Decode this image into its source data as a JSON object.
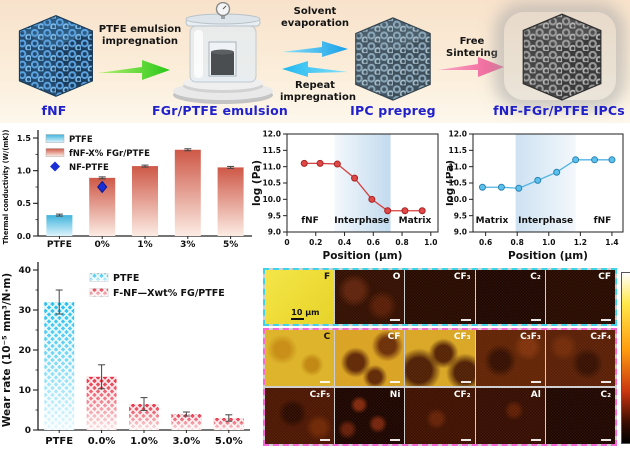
{
  "process": {
    "label_color": "#2121cc",
    "steps": [
      {
        "label": "fNF"
      },
      {
        "label": "FGr/PTFE emulsion"
      },
      {
        "label": "IPC prepreg"
      },
      {
        "label": "fNF-FGr/PTFE IPCs"
      }
    ],
    "arrows": [
      {
        "label": "PTFE emulsion impregnation",
        "color": "#35c419",
        "direction": "right"
      },
      {
        "label": "Solvent evaporation",
        "color": "#22aee8",
        "direction": "right"
      },
      {
        "label": "Repeat impregnation",
        "color": "#22aee8",
        "direction": "left"
      },
      {
        "label": "Free Sintering",
        "color": "#f2649e",
        "direction": "right"
      }
    ]
  },
  "chart_data": [
    {
      "type": "bar",
      "ylabel": "Thermal conductivity (W/(mK))",
      "categories": [
        "PTFE",
        "0%",
        "1%",
        "3%",
        "5%"
      ],
      "values": [
        0.32,
        0.89,
        1.07,
        1.32,
        1.05
      ],
      "errors": [
        0.015,
        0.015,
        0.015,
        0.015,
        0.015
      ],
      "styles": [
        "cyan",
        "red",
        "red",
        "red",
        "red"
      ],
      "ylim": [
        0,
        1.5
      ],
      "yticks": [
        "0.0",
        "0.5",
        "1.0",
        "1.5"
      ],
      "yminor": 0.25,
      "hatch": false,
      "marker": {
        "label": "NF-PTFE",
        "category": "0%",
        "value": 0.75,
        "color": "#1b2fd6"
      },
      "legend": [
        {
          "label": "PTFE",
          "swatch": "cyan"
        },
        {
          "label": "fNF-X% FGr/PTFE",
          "swatch": "red"
        },
        {
          "label": "NF-PTFE",
          "swatch": "diamond"
        }
      ]
    },
    {
      "type": "line",
      "color": "#d64040",
      "marker_fill": "#e04848",
      "marker_stroke": "#a82424",
      "xlabel": "Position (μm)",
      "ylabel": "log (Pa)",
      "x": [
        0.12,
        0.23,
        0.35,
        0.47,
        0.59,
        0.7,
        0.82,
        0.94
      ],
      "y": [
        11.1,
        11.1,
        11.08,
        10.65,
        10.0,
        9.65,
        9.65,
        9.65
      ],
      "xlim": [
        0,
        1.05
      ],
      "ylim": [
        9.0,
        12.0
      ],
      "xticks": [
        "0",
        "0.2",
        "0.4",
        "0.6",
        "0.8",
        "1.0"
      ],
      "yticks": [
        "9.0",
        "9.5",
        "10.0",
        "10.5",
        "11.0",
        "11.5",
        "12.0"
      ],
      "band": [
        0.33,
        0.72
      ],
      "band_alpha": [
        0.12,
        0.62
      ],
      "regions": [
        {
          "label": "fNF",
          "x": 0.16
        },
        {
          "label": "Interphase",
          "x": 0.52
        },
        {
          "label": "Matrix",
          "x": 0.89
        }
      ]
    },
    {
      "type": "line",
      "color": "#52b4e4",
      "marker_fill": "#5cc0ec",
      "marker_stroke": "#2a84b4",
      "xlabel": "Position (μm)",
      "ylabel": "log (Pa)",
      "x": [
        0.58,
        0.7,
        0.81,
        0.93,
        1.05,
        1.17,
        1.29,
        1.4
      ],
      "y": [
        10.37,
        10.37,
        10.34,
        10.58,
        10.83,
        11.21,
        11.21,
        11.21
      ],
      "xlim": [
        0.52,
        1.47
      ],
      "ylim": [
        9.0,
        12.0
      ],
      "xticks": [
        "0.6",
        "0.8",
        "1.0",
        "1.2",
        "1.4"
      ],
      "yticks": [
        "9.0",
        "9.5",
        "10.0",
        "10.5",
        "11.0",
        "11.5",
        "12.0"
      ],
      "band": [
        0.79,
        1.17
      ],
      "band_alpha": [
        0.5,
        0.12
      ],
      "regions": [
        {
          "label": "Matrix",
          "x": 0.64
        },
        {
          "label": "Interphase",
          "x": 0.98
        },
        {
          "label": "fNF",
          "x": 1.34
        }
      ]
    },
    {
      "type": "bar",
      "ylabel": "Wear rate (10⁻⁵ mm³/N·m)",
      "categories": [
        "PTFE",
        "0.0%",
        "1.0%",
        "3.0%",
        "5.0%"
      ],
      "values": [
        32,
        13.3,
        6.5,
        4.0,
        3.0
      ],
      "errors": [
        3.0,
        3.0,
        1.6,
        0.5,
        0.8
      ],
      "styles": [
        "cyan",
        "red",
        "red",
        "red",
        "red"
      ],
      "ylim": [
        0,
        40
      ],
      "yticks": [
        "0",
        "10",
        "20",
        "30",
        "40"
      ],
      "yminor": 5,
      "hatch": true,
      "legend": [
        {
          "label": "PTFE",
          "swatch": "cyan"
        },
        {
          "label": "F-NF—Xwt% FG/PTFE",
          "swatch": "red"
        }
      ]
    }
  ],
  "eds": {
    "scale_label": "10 μm",
    "colorbar_colors": [
      "#ffffff",
      "#ffe84a",
      "#ff9c10",
      "#c83410",
      "#000000"
    ],
    "border_colors": {
      "row1": "#3cd4e8",
      "rows23": "#f868d8"
    },
    "boxes": [
      {
        "border": "cyan",
        "rows": [
          [
            {
              "label": "F",
              "style": "f",
              "dark_label": true,
              "scale": true
            },
            {
              "label": "O",
              "style": "o"
            },
            {
              "label": "CF₃",
              "style": "d1"
            },
            {
              "label": "C₂",
              "style": "d2"
            },
            {
              "label": "CF",
              "style": "d1"
            }
          ]
        ]
      },
      {
        "border": "mag",
        "rows": [
          [
            {
              "label": "C",
              "style": "c",
              "dark_label": true
            },
            {
              "label": "CF",
              "style": "cfy"
            },
            {
              "label": "CF₃",
              "style": "cf3y"
            },
            {
              "label": "C₃F₃",
              "style": "c3f3"
            },
            {
              "label": "C₂F₄",
              "style": "c2f4"
            }
          ],
          [
            {
              "label": "C₂F₅",
              "style": "c2f5"
            },
            {
              "label": "Ni",
              "style": "ni"
            },
            {
              "label": "CF₂",
              "style": "cf2"
            },
            {
              "label": "Al",
              "style": "al"
            },
            {
              "label": "C₂",
              "style": "d2"
            }
          ]
        ]
      }
    ]
  }
}
